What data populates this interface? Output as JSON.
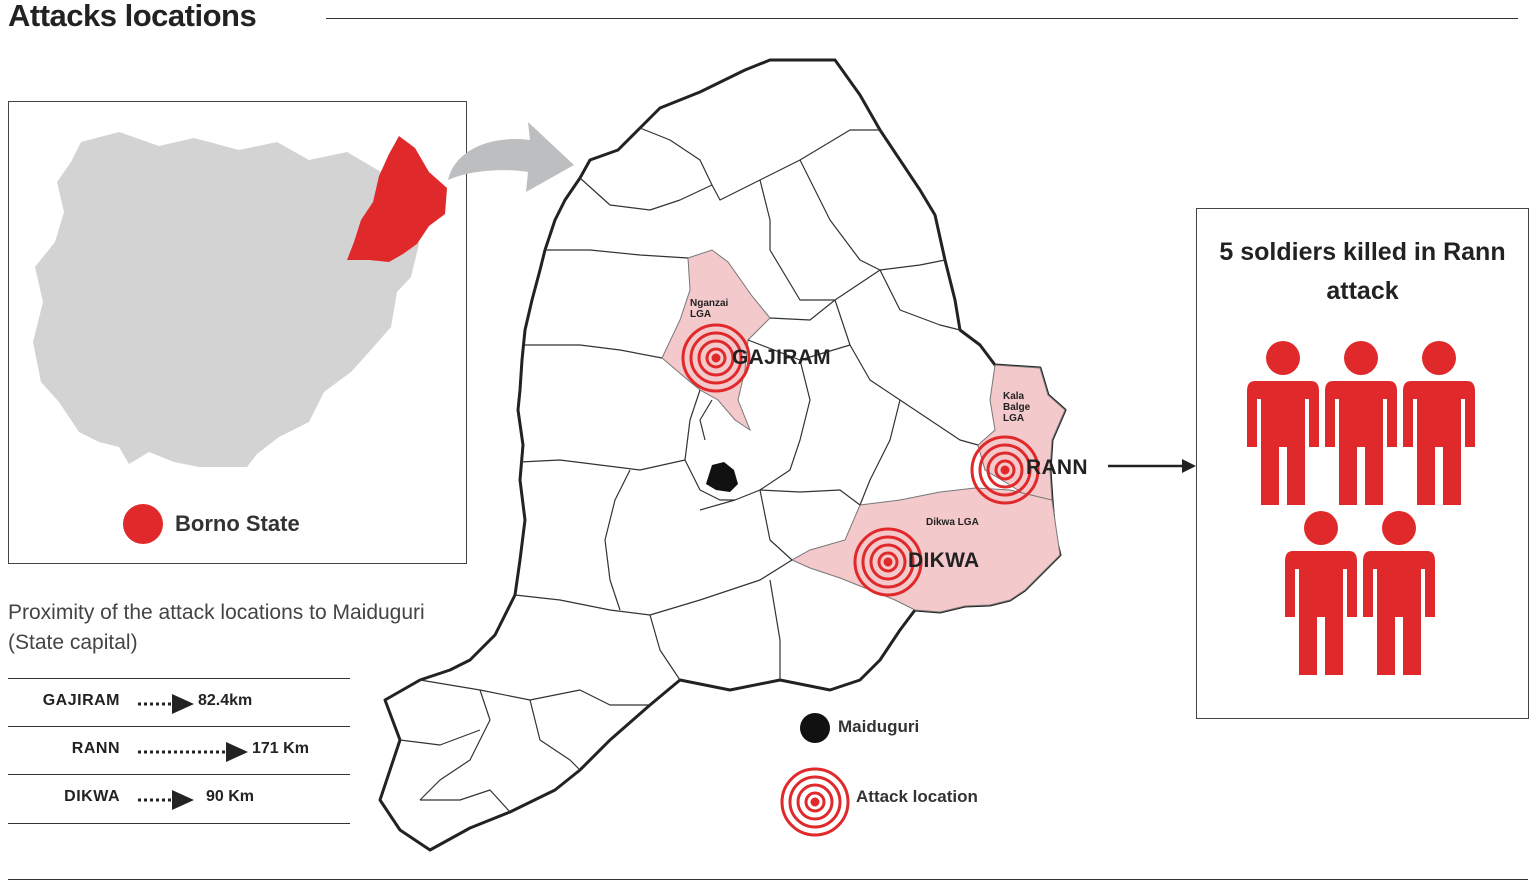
{
  "title": "Attacks locations",
  "inset": {
    "legend_label": "Borno State",
    "highlight_color": "#e0292a",
    "country_color": "#d3d3d3"
  },
  "proximity": {
    "title": "Proximity of the attack locations to Maiduguri (State capital)",
    "rows": [
      {
        "name": "GAJIRAM",
        "distance": "82.4km"
      },
      {
        "name": "RANN",
        "distance": "171 Km"
      },
      {
        "name": "DIKWA",
        "distance": "90 Km"
      }
    ]
  },
  "map": {
    "lgas": [
      {
        "name": "Nganzai LGA",
        "lines": [
          "Nganzai",
          "LGA"
        ]
      },
      {
        "name": "Kala Balge LGA",
        "lines": [
          "Kala",
          "Balge",
          "LGA"
        ]
      },
      {
        "name": "Dikwa LGA",
        "lines": [
          "Dikwa LGA"
        ]
      }
    ],
    "towns": [
      "GAJIRAM",
      "RANN",
      "DIKWA"
    ],
    "legend": {
      "capital": "Maiduguri",
      "attack": "Attack location"
    },
    "colors": {
      "attack_area": "#f3c9cb",
      "attack_ring": "#e0292a",
      "capital": "#111111"
    }
  },
  "panel": {
    "headline": "5 soldiers killed in Rann attack",
    "soldier_count": 5,
    "soldier_color": "#e0292a"
  }
}
